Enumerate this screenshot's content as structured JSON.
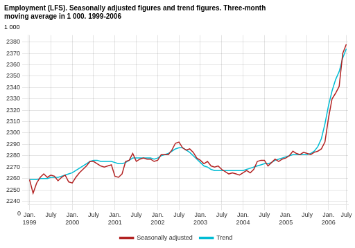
{
  "chart_data": {
    "type": "line",
    "title": "Employment (LFS). Seasonally adjusted figures and trend figures. Three-month\nmoving average in 1 000. 1999-2006",
    "ylabel": "1 000",
    "annotations": [
      {
        "text": "0"
      }
    ],
    "categories": [
      "Jan.\n1999",
      null,
      null,
      null,
      null,
      null,
      "July",
      null,
      null,
      null,
      null,
      null,
      "Jan.\n2000",
      null,
      null,
      null,
      null,
      null,
      "July",
      null,
      null,
      null,
      null,
      null,
      "Jan.\n2001",
      null,
      null,
      null,
      null,
      null,
      "July",
      null,
      null,
      null,
      null,
      null,
      "Jan.\n2002",
      null,
      null,
      null,
      null,
      null,
      "July",
      null,
      null,
      null,
      null,
      null,
      "Jan.\n2003",
      null,
      null,
      null,
      null,
      null,
      "July",
      null,
      null,
      null,
      null,
      null,
      "Jan.\n2004",
      null,
      null,
      null,
      null,
      null,
      "July",
      null,
      null,
      null,
      null,
      null,
      "Jan.\n2005",
      null,
      null,
      null,
      null,
      null,
      "July",
      null,
      null,
      null,
      null,
      null,
      "Jan.\n2006",
      null,
      null,
      null,
      null,
      "July"
    ],
    "series": [
      {
        "name": "Seasonally adjusted",
        "color": "#b22222",
        "values": [
          2259,
          2247,
          2256,
          2261,
          2264,
          2261,
          2263,
          2262,
          2258,
          2261,
          2263,
          2257,
          2256,
          2261,
          2265,
          2268,
          2271,
          2275,
          2275,
          2273,
          2271,
          2270,
          2271,
          2272,
          2262,
          2261,
          2264,
          2275,
          2276,
          2282,
          2275,
          2277,
          2278,
          2277,
          2277,
          2275,
          2276,
          2281,
          2281,
          2281,
          2285,
          2291,
          2292,
          2287,
          2285,
          2286,
          2283,
          2278,
          2276,
          2273,
          2275,
          2271,
          2270,
          2271,
          2268,
          2266,
          2264,
          2265,
          2264,
          2263,
          2265,
          2267,
          2265,
          2268,
          2275,
          2276,
          2276,
          2271,
          2274,
          2277,
          2275,
          2277,
          2278,
          2280,
          2284,
          2282,
          2281,
          2283,
          2282,
          2281,
          2283,
          2284,
          2286,
          2292,
          2313,
          2330,
          2335,
          2341,
          2370,
          2378
        ]
      },
      {
        "name": "Trend",
        "color": "#00bcd4",
        "values": [
          2259,
          2259,
          2259,
          2260,
          2260,
          2260,
          2261,
          2261,
          2261,
          2262,
          2263,
          2264,
          2265,
          2267,
          2269,
          2271,
          2273,
          2275,
          2276,
          2276,
          2275,
          2275,
          2275,
          2275,
          2274,
          2273,
          2273,
          2274,
          2276,
          2278,
          2278,
          2278,
          2278,
          2278,
          2278,
          2277,
          2278,
          2280,
          2281,
          2282,
          2284,
          2286,
          2287,
          2287,
          2285,
          2283,
          2280,
          2277,
          2274,
          2271,
          2270,
          2268,
          2267,
          2267,
          2267,
          2267,
          2267,
          2267,
          2267,
          2267,
          2267,
          2268,
          2269,
          2270,
          2271,
          2272,
          2273,
          2273,
          2274,
          2276,
          2277,
          2278,
          2279,
          2280,
          2281,
          2281,
          2281,
          2281,
          2281,
          2282,
          2284,
          2288,
          2295,
          2308,
          2324,
          2337,
          2347,
          2354,
          2366,
          2374
        ]
      }
    ],
    "ylim": [
      2237,
      2386
    ],
    "yticks": [
      2240,
      2250,
      2260,
      2270,
      2280,
      2290,
      2300,
      2310,
      2320,
      2330,
      2340,
      2350,
      2360,
      2370,
      2380
    ],
    "grid": true,
    "legend": "bottom"
  }
}
